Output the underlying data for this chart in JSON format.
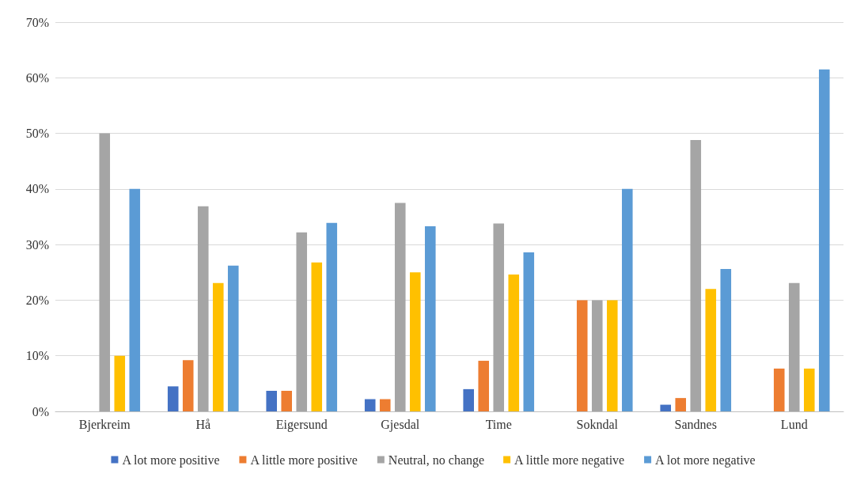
{
  "chart_data": {
    "type": "bar",
    "categories": [
      "Bjerkreim",
      "Hå",
      "Eigersund",
      "Gjesdal",
      "Time",
      "Sokndal",
      "Sandnes",
      "Lund"
    ],
    "series": [
      {
        "name": "A lot more positive",
        "color": "#4472c4",
        "values": [
          0,
          4.5,
          3.7,
          2.2,
          4.0,
          0,
          1.2,
          0
        ]
      },
      {
        "name": "A little more positive",
        "color": "#ed7d31",
        "values": [
          0,
          9.2,
          3.7,
          2.2,
          9.1,
          20,
          2.4,
          7.7
        ]
      },
      {
        "name": "Neutral, no change",
        "color": "#a5a5a5",
        "values": [
          50,
          36.9,
          32.2,
          37.5,
          33.8,
          20,
          48.8,
          23.1
        ]
      },
      {
        "name": "A little more negative",
        "color": "#ffc000",
        "values": [
          10,
          23.1,
          26.8,
          25,
          24.6,
          20,
          22,
          7.7
        ]
      },
      {
        "name": "A lot more negative",
        "color": "#5b9bd5",
        "values": [
          40,
          26.2,
          33.9,
          33.3,
          28.6,
          40,
          25.6,
          61.5
        ]
      }
    ],
    "ylim": [
      0,
      70
    ],
    "yticks": [
      {
        "value": 0,
        "label": "0%"
      },
      {
        "value": 10,
        "label": "10%"
      },
      {
        "value": 20,
        "label": "20%"
      },
      {
        "value": 30,
        "label": "30%"
      },
      {
        "value": 40,
        "label": "40%"
      },
      {
        "value": 50,
        "label": "50%"
      },
      {
        "value": 60,
        "label": "60%"
      },
      {
        "value": 70,
        "label": "70%"
      }
    ],
    "grid": "y",
    "legend": "bottom"
  }
}
